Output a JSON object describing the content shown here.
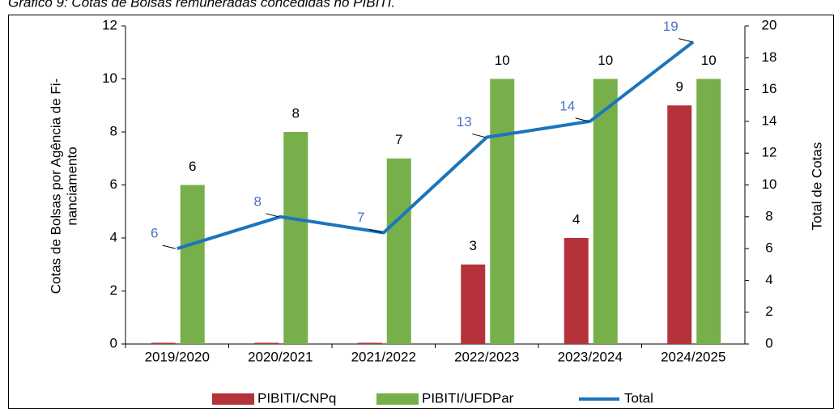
{
  "chart_data": {
    "type": "bar_line",
    "title": "Gráfico 9: Cotas de Bolsas remuneradas concedidas no PIBITI.",
    "categories": [
      "2019/2020",
      "2020/2021",
      "2021/2022",
      "2022/2023",
      "2023/2024",
      "2024/2025"
    ],
    "series": [
      {
        "name": "PIBITI/CNPq",
        "color": "#b5323a",
        "type": "bar",
        "values": [
          0,
          0,
          0,
          3,
          4,
          9
        ]
      },
      {
        "name": "PIBITI/UFDPar",
        "color": "#77b04a",
        "type": "bar",
        "values": [
          6,
          8,
          7,
          10,
          10,
          10
        ]
      },
      {
        "name": "Total",
        "color": "#1b75bc",
        "type": "line",
        "axis": "y2",
        "values": [
          6,
          8,
          7,
          13,
          14,
          19
        ]
      }
    ],
    "ylabel": [
      "Cotas de Bolsas por Agência de Fi-",
      "nanciamento"
    ],
    "y2label": "Total de Cotas",
    "ylim": [
      0,
      12
    ],
    "yticks": [
      0,
      2,
      4,
      6,
      8,
      10,
      12
    ],
    "y2lim": [
      0,
      20
    ],
    "y2ticks": [
      0,
      2,
      4,
      6,
      8,
      10,
      12,
      14,
      16,
      18,
      20
    ],
    "legend": "bottom"
  }
}
